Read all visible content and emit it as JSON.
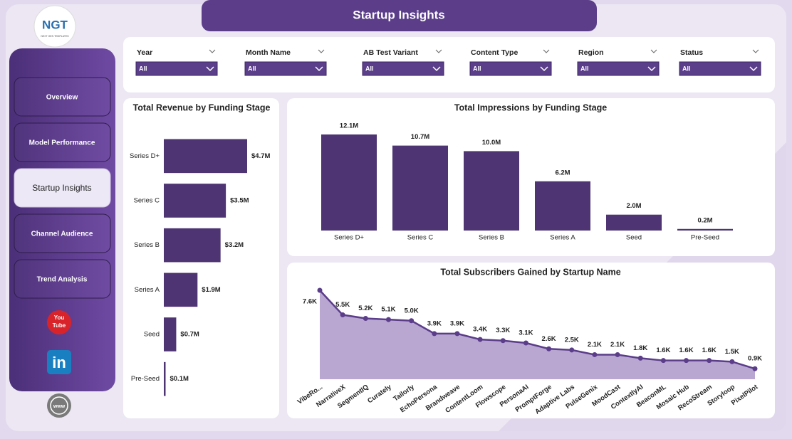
{
  "header": {
    "title": "Startup Insights",
    "logo": "NGT",
    "logo_sub": "NEXT GEN TEMPLATES"
  },
  "nav": {
    "items": [
      "Overview",
      "Model Performance",
      "Startup Insights",
      "Channel Audience",
      "Trend Analysis"
    ],
    "active": 2
  },
  "icons": {
    "youtube": [
      "You",
      "Tube"
    ],
    "linkedin": "in",
    "web": "www"
  },
  "filters": [
    {
      "label": "Year",
      "value": "All"
    },
    {
      "label": "Month Name",
      "value": "All"
    },
    {
      "label": "AB Test Variant",
      "value": "All"
    },
    {
      "label": "Content Type",
      "value": "All"
    },
    {
      "label": "Region",
      "value": "All"
    },
    {
      "label": "Status",
      "value": "All"
    }
  ],
  "chart_data": [
    {
      "type": "bar",
      "orientation": "horizontal",
      "title": "Total Revenue by Funding Stage",
      "color": "#4e3473",
      "categories": [
        "Series D+",
        "Series C",
        "Series B",
        "Series A",
        "Seed",
        "Pre-Seed"
      ],
      "values": [
        4700000,
        3500000,
        3200000,
        1900000,
        700000,
        100000
      ],
      "value_labels": [
        "$4.7M",
        "$3.5M",
        "$3.2M",
        "$1.9M",
        "$0.7M",
        "$0.1M"
      ]
    },
    {
      "type": "bar",
      "orientation": "vertical",
      "title": "Total Impressions by Funding Stage",
      "color": "#4e3473",
      "categories": [
        "Series D+",
        "Series C",
        "Series B",
        "Series A",
        "Seed",
        "Pre-Seed"
      ],
      "values": [
        12100000,
        10700000,
        10000000,
        6200000,
        2000000,
        200000
      ],
      "value_labels": [
        "12.1M",
        "10.7M",
        "10.0M",
        "6.2M",
        "2.0M",
        "0.2M"
      ]
    },
    {
      "type": "area",
      "title": "Total Subscribers Gained by Startup Name",
      "color": "#5b3d8a",
      "fill": "#b9a7d2",
      "categories": [
        "VibeRo...",
        "NarrativeX",
        "SegmentIQ",
        "Curately",
        "Tailorly",
        "EchoPersona",
        "Brandweave",
        "ContentLoom",
        "Flowscope",
        "PersonaAI",
        "PromptForge",
        "Adaptive Labs",
        "PulseGenix",
        "MoodCast",
        "ContextlyAI",
        "BeaconML",
        "Mosaic Hub",
        "RecoStream",
        "Storyloop",
        "PixelPilot"
      ],
      "values": [
        7600,
        5500,
        5200,
        5100,
        5000,
        3900,
        3900,
        3400,
        3300,
        3100,
        2600,
        2500,
        2100,
        2100,
        1800,
        1600,
        1600,
        1600,
        1500,
        900
      ],
      "value_labels": [
        "7.6K",
        "5.5K",
        "5.2K",
        "5.1K",
        "5.0K",
        "3.9K",
        "3.9K",
        "3.4K",
        "3.3K",
        "3.1K",
        "2.6K",
        "2.5K",
        "2.1K",
        "2.1K",
        "1.8K",
        "1.6K",
        "1.6K",
        "1.6K",
        "1.5K",
        "0.9K"
      ]
    }
  ]
}
